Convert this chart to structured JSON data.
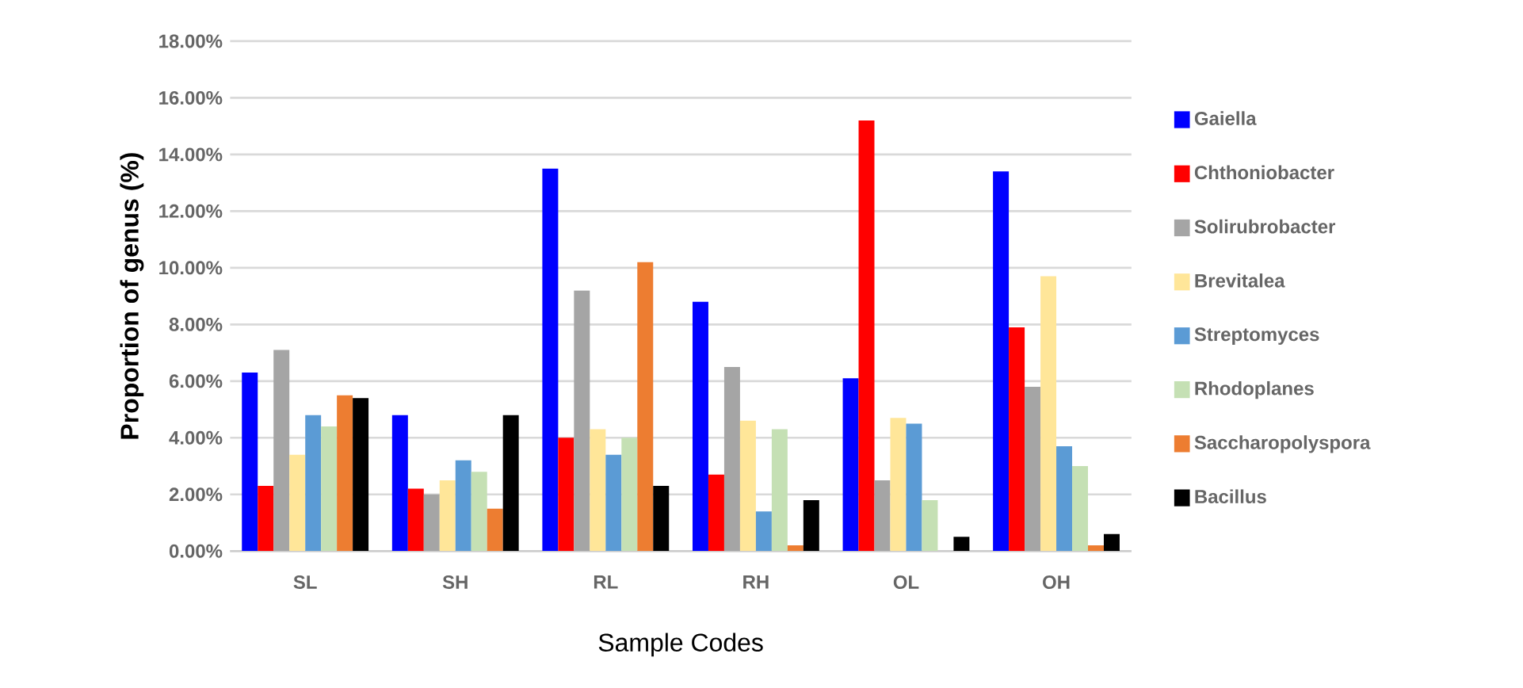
{
  "chart_data": {
    "type": "bar",
    "xlabel": "Sample Codes",
    "ylabel": "Proportion of genus (%)",
    "categories": [
      "SL",
      "SH",
      "RL",
      "RH",
      "OL",
      "OH"
    ],
    "series": [
      {
        "name": "Gaiella",
        "color": "#0000ff",
        "values": [
          6.3,
          4.8,
          13.5,
          8.8,
          6.1,
          13.4
        ]
      },
      {
        "name": "Chthoniobacter",
        "color": "#ff0000",
        "values": [
          2.3,
          2.2,
          4.0,
          2.7,
          15.2,
          7.9
        ]
      },
      {
        "name": "Solirubrobacter",
        "color": "#a5a5a5",
        "values": [
          7.1,
          2.0,
          9.2,
          6.5,
          2.5,
          5.8
        ]
      },
      {
        "name": "Brevitalea",
        "color": "#ffe699",
        "values": [
          3.4,
          2.5,
          4.3,
          4.6,
          4.7,
          9.7
        ]
      },
      {
        "name": "Streptomyces",
        "color": "#5b9bd5",
        "values": [
          4.8,
          3.2,
          3.4,
          1.4,
          4.5,
          3.7
        ]
      },
      {
        "name": "Rhodoplanes",
        "color": "#c5e0b4",
        "values": [
          4.4,
          2.8,
          4.0,
          4.3,
          1.8,
          3.0
        ]
      },
      {
        "name": "Saccharopolyspora",
        "color": "#ed7d31",
        "values": [
          5.5,
          1.5,
          10.2,
          0.2,
          0,
          0.2
        ]
      },
      {
        "name": "Bacillus",
        "color": "#000000",
        "values": [
          5.4,
          4.8,
          2.3,
          1.8,
          0.5,
          0.6
        ]
      }
    ],
    "ylim": [
      0,
      18
    ],
    "yticks": [
      {
        "value": 0,
        "label": "0.00%"
      },
      {
        "value": 2,
        "label": "2.00%"
      },
      {
        "value": 4,
        "label": "4.00%"
      },
      {
        "value": 6,
        "label": "6.00%"
      },
      {
        "value": 8,
        "label": "8.00%"
      },
      {
        "value": 10,
        "label": "10.00%"
      },
      {
        "value": 12,
        "label": "12.00%"
      },
      {
        "value": 14,
        "label": "14.00%"
      },
      {
        "value": 16,
        "label": "16.00%"
      },
      {
        "value": 18,
        "label": "18.00%"
      }
    ],
    "grid": "y",
    "legend": "right"
  }
}
